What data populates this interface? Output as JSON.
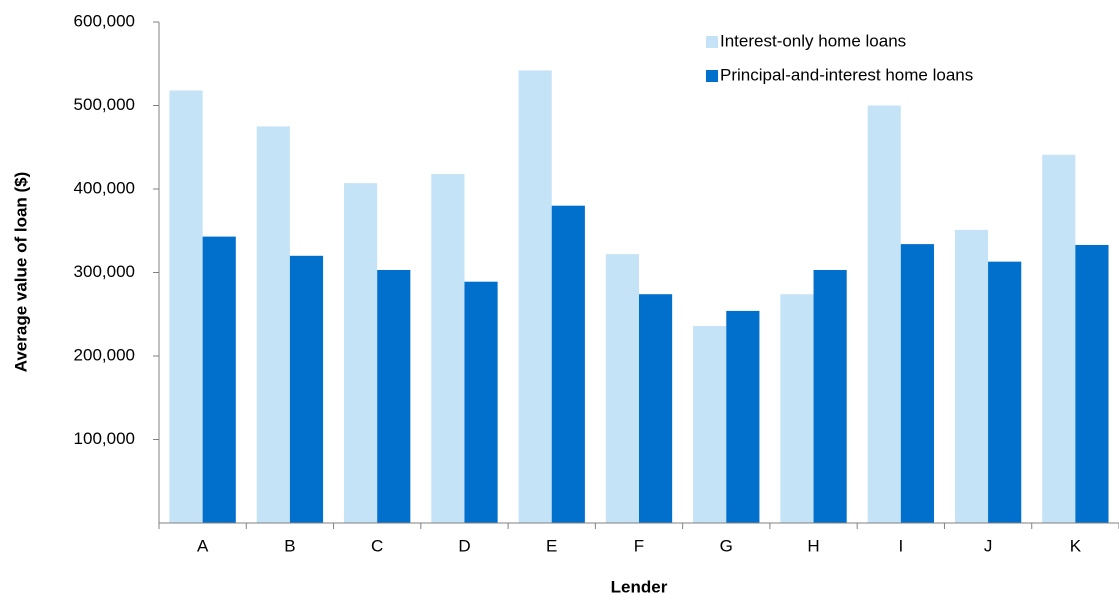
{
  "chart_data": {
    "type": "bar",
    "x_label": "Lender",
    "y_label": "Average value of loan ($)",
    "categories": [
      "A",
      "B",
      "C",
      "D",
      "E",
      "F",
      "G",
      "H",
      "I",
      "J",
      "K"
    ],
    "series": [
      {
        "name": "Interest-only home loans",
        "color": "#c5e3f7",
        "values": [
          518000,
          475000,
          407000,
          418000,
          542000,
          322000,
          236000,
          274000,
          500000,
          351000,
          441000
        ]
      },
      {
        "name": "Principal-and-interest home loans",
        "color": "#0070cc",
        "values": [
          343000,
          320000,
          303000,
          289000,
          380000,
          274000,
          254000,
          303000,
          334000,
          313000,
          333000
        ]
      }
    ],
    "ylim": [
      0,
      600000
    ],
    "yticks": [
      {
        "value": 100000,
        "label": "100,000"
      },
      {
        "value": 200000,
        "label": "200,000"
      },
      {
        "value": 300000,
        "label": "300,000"
      },
      {
        "value": 400000,
        "label": "400,000"
      },
      {
        "value": 500000,
        "label": "500,000"
      },
      {
        "value": 600000,
        "label": "600,000"
      }
    ],
    "grid": false,
    "legend": "top-right"
  }
}
